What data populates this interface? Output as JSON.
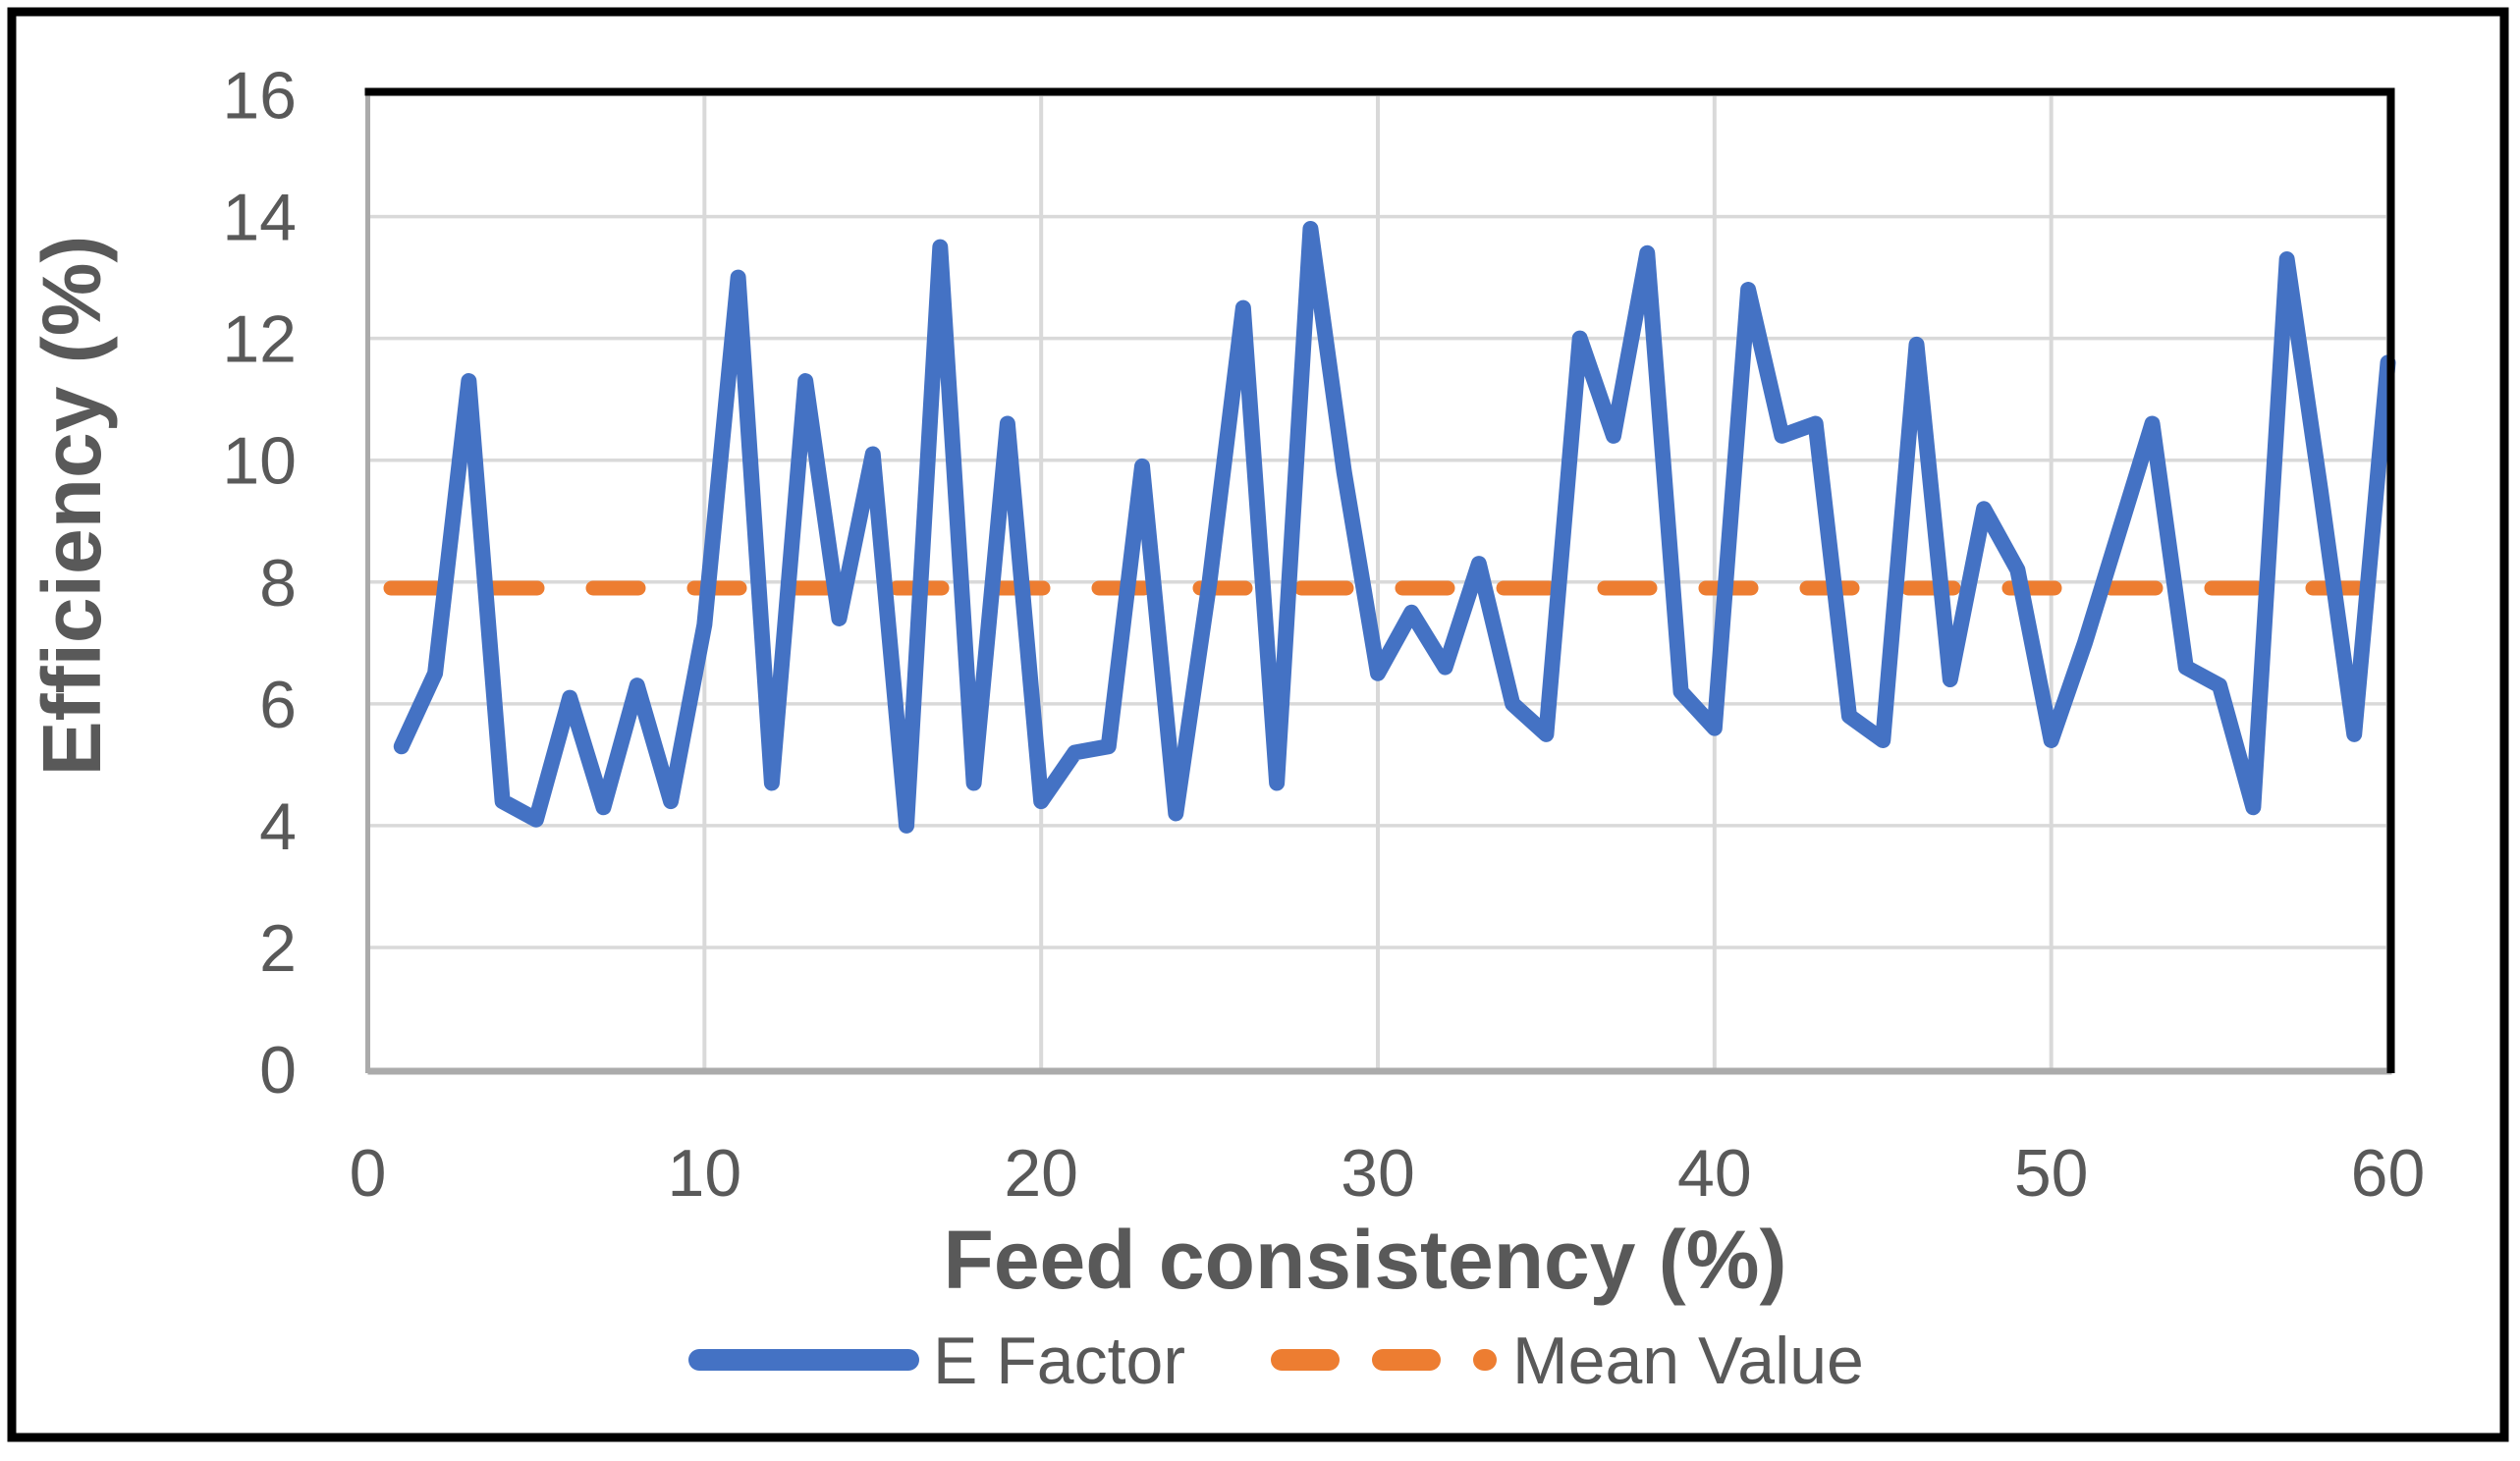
{
  "figure": {
    "background": "#ffffff",
    "outer_border_color": "#000000",
    "plot_border_color": "#000000",
    "axis_line_color": "#ababab",
    "gridline_color": "#d9d9d9",
    "text_color": "#595959"
  },
  "chart_data": {
    "type": "line",
    "title": "",
    "xlabel": "Feed consistency (%)",
    "ylabel": "Efficiency (%)",
    "xlim": [
      0,
      60
    ],
    "ylim": [
      0,
      16
    ],
    "x_ticks": [
      0,
      10,
      20,
      30,
      40,
      50,
      60
    ],
    "y_ticks": [
      0,
      2,
      4,
      6,
      8,
      10,
      12,
      14,
      16
    ],
    "grid": "on",
    "legend_position": "bottom-center",
    "x_start": 1,
    "x_step": 1,
    "series": [
      {
        "name": "E Factor",
        "type": "line",
        "style": "solid",
        "color": "#4472C4",
        "values": [
          5.3,
          6.5,
          11.3,
          4.4,
          4.1,
          6.1,
          4.3,
          6.3,
          4.4,
          7.3,
          13.0,
          4.7,
          11.3,
          7.4,
          10.1,
          4.0,
          13.5,
          4.7,
          10.6,
          4.4,
          5.2,
          5.3,
          9.9,
          4.2,
          8.0,
          12.5,
          4.7,
          13.8,
          9.8,
          6.5,
          7.5,
          6.6,
          8.3,
          6.0,
          5.5,
          12.0,
          10.4,
          13.4,
          6.2,
          5.6,
          12.8,
          10.4,
          10.6,
          5.8,
          5.4,
          11.9,
          6.4,
          9.2,
          8.2,
          5.4,
          7.0,
          8.8,
          10.6,
          6.6,
          6.3,
          4.3,
          13.3,
          9.5,
          5.5,
          11.6
        ]
      },
      {
        "name": "Mean Value",
        "type": "constant-line",
        "style": "dashed",
        "color": "#ED7D31",
        "value": 7.9
      }
    ]
  },
  "legend": {
    "e_factor_label": "E Factor",
    "mean_value_label": "Mean Value"
  }
}
